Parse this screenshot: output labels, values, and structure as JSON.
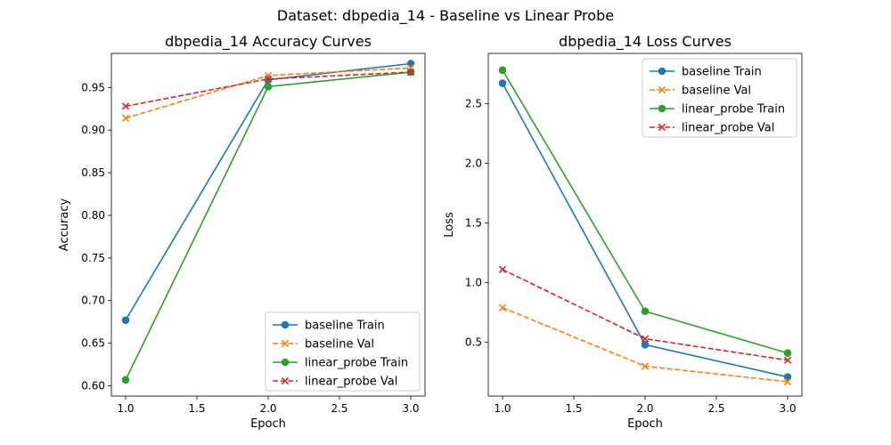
{
  "figure": {
    "suptitle": "Dataset: dbpedia_14 - Baseline vs Linear Probe"
  },
  "chart_data": [
    {
      "type": "line",
      "title": "dbpedia_14 Accuracy Curves",
      "xlabel": "Epoch",
      "ylabel": "Accuracy",
      "xlim": [
        0.9,
        3.1
      ],
      "ylim": [
        0.588,
        0.99
      ],
      "xticks": [
        1.0,
        1.5,
        2.0,
        2.5,
        3.0
      ],
      "xtick_labels": [
        "1.0",
        "1.5",
        "2.0",
        "2.5",
        "3.0"
      ],
      "yticks": [
        0.6,
        0.65,
        0.7,
        0.75,
        0.8,
        0.85,
        0.9,
        0.95
      ],
      "ytick_labels": [
        "0.60",
        "0.65",
        "0.70",
        "0.75",
        "0.80",
        "0.85",
        "0.90",
        "0.95"
      ],
      "grid": false,
      "legend_position": "lower-right",
      "x": [
        1,
        2,
        3
      ],
      "series": [
        {
          "name": "baseline Train",
          "values": [
            0.677,
            0.959,
            0.978
          ],
          "color": "#1f77b4",
          "linestyle": "solid",
          "marker": "circle"
        },
        {
          "name": "baseline Val",
          "values": [
            0.914,
            0.964,
            0.973
          ],
          "color": "#ff7f0e",
          "linestyle": "dashed",
          "marker": "x"
        },
        {
          "name": "linear_probe Train",
          "values": [
            0.607,
            0.951,
            0.968
          ],
          "color": "#2ca02c",
          "linestyle": "solid",
          "marker": "circle"
        },
        {
          "name": "linear_probe Val",
          "values": [
            0.928,
            0.96,
            0.968
          ],
          "color": "#d62728",
          "linestyle": "dashed",
          "marker": "x"
        }
      ]
    },
    {
      "type": "line",
      "title": "dbpedia_14 Loss Curves",
      "xlabel": "Epoch",
      "ylabel": "Loss",
      "xlim": [
        0.9,
        3.1
      ],
      "ylim": [
        0.05,
        2.92
      ],
      "xticks": [
        1.0,
        1.5,
        2.0,
        2.5,
        3.0
      ],
      "xtick_labels": [
        "1.0",
        "1.5",
        "2.0",
        "2.5",
        "3.0"
      ],
      "yticks": [
        0.5,
        1.0,
        1.5,
        2.0,
        2.5
      ],
      "ytick_labels": [
        "0.5",
        "1.0",
        "1.5",
        "2.0",
        "2.5"
      ],
      "grid": false,
      "legend_position": "upper-right",
      "x": [
        1,
        2,
        3
      ],
      "series": [
        {
          "name": "baseline Train",
          "values": [
            2.67,
            0.48,
            0.21
          ],
          "color": "#1f77b4",
          "linestyle": "solid",
          "marker": "circle"
        },
        {
          "name": "baseline Val",
          "values": [
            0.79,
            0.3,
            0.17
          ],
          "color": "#ff7f0e",
          "linestyle": "dashed",
          "marker": "x"
        },
        {
          "name": "linear_probe Train",
          "values": [
            2.78,
            0.76,
            0.41
          ],
          "color": "#2ca02c",
          "linestyle": "solid",
          "marker": "circle"
        },
        {
          "name": "linear_probe Val",
          "values": [
            1.11,
            0.53,
            0.35
          ],
          "color": "#d62728",
          "linestyle": "dashed",
          "marker": "x"
        }
      ]
    }
  ]
}
